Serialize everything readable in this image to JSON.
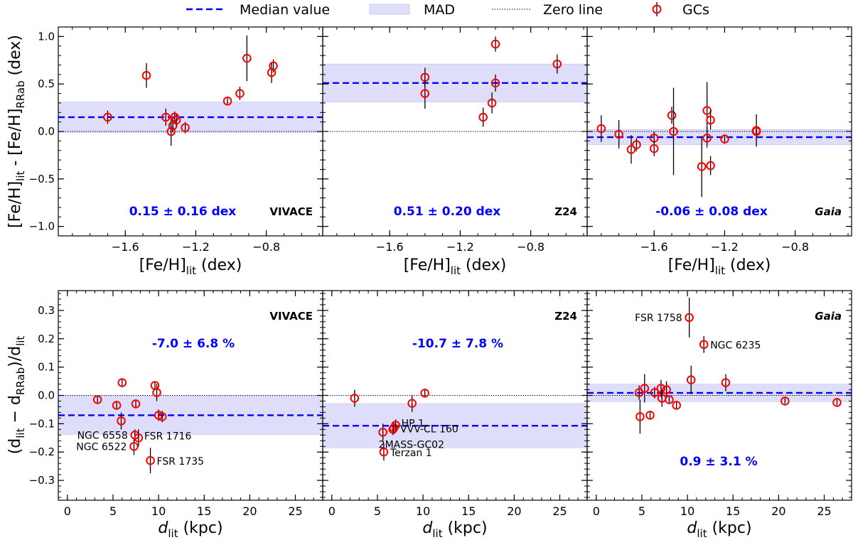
{
  "legend": {
    "items": [
      {
        "label": "Median value",
        "kind": "dashed-line",
        "color": "#0000ff"
      },
      {
        "label": "MAD",
        "kind": "band",
        "color": "#e0e0fb"
      },
      {
        "label": "Zero line",
        "kind": "dotted-line",
        "color": "#000000"
      },
      {
        "label": "GCs",
        "kind": "circle-marker",
        "color": "#ff0000"
      }
    ],
    "placement": "top-center"
  },
  "colors": {
    "median": "#0000ff",
    "mad": "#dedefa",
    "marker": "#ff0000",
    "errorbar": "#000000",
    "stat_text": "#0000ff"
  },
  "rows": {
    "top": {
      "ylabel_main": "[Fe/H]",
      "ylabel_sub1": "lit",
      "ylabel_mid": " - [Fe/H]",
      "ylabel_sub2": "RRab",
      "ylabel_unit": " (dex)",
      "xlabel_main": "[Fe/H]",
      "xlabel_sub": "lit",
      "xlabel_unit": " (dex)"
    },
    "bottom": {
      "ylabel_open": "(d",
      "ylabel_sub1": "lit",
      "ylabel_minus": " − d",
      "ylabel_sub2": "RRab",
      "ylabel_mid": ")/d",
      "ylabel_sub3": "lit",
      "xlabel_main": "d",
      "xlabel_sub": "lit",
      "xlabel_unit": " (kpc)"
    }
  },
  "chart_data": [
    {
      "type": "scatter",
      "row": "top",
      "col": 0,
      "tag": "VIVACE",
      "tag_italic": false,
      "stat_text": "0.15 ± 0.16 dex",
      "xlim": [
        -1.98,
        -0.48
      ],
      "ylim": [
        -1.1,
        1.1
      ],
      "xticks": [
        -1.6,
        -1.2,
        -0.8
      ],
      "xtick_labels": [
        "−1.6",
        "−1.2",
        "−0.8"
      ],
      "yticks": [
        -1.0,
        -0.5,
        0.0,
        0.5,
        1.0
      ],
      "ytick_labels": [
        "−1.0",
        "−0.5",
        "0.0",
        "0.5",
        "1.0"
      ],
      "median": 0.15,
      "mad": 0.16,
      "points": [
        {
          "x": -1.7,
          "y": 0.15,
          "err": 0.07
        },
        {
          "x": -1.48,
          "y": 0.59,
          "err": 0.13
        },
        {
          "x": -1.37,
          "y": 0.15,
          "err": 0.09
        },
        {
          "x": -1.34,
          "y": 0.0,
          "err": 0.15
        },
        {
          "x": -1.33,
          "y": 0.06,
          "err": 0.07
        },
        {
          "x": -1.32,
          "y": 0.15,
          "err": 0.06
        },
        {
          "x": -1.31,
          "y": 0.12,
          "err": 0.06
        },
        {
          "x": -1.26,
          "y": 0.04,
          "err": 0.06
        },
        {
          "x": -1.02,
          "y": 0.32,
          "err": 0.03
        },
        {
          "x": -0.95,
          "y": 0.4,
          "err": 0.07
        },
        {
          "x": -0.91,
          "y": 0.77,
          "err": 0.24
        },
        {
          "x": -0.77,
          "y": 0.62,
          "err": 0.11
        },
        {
          "x": -0.76,
          "y": 0.69,
          "err": 0.07
        }
      ],
      "labels": []
    },
    {
      "type": "scatter",
      "row": "top",
      "col": 1,
      "tag": "Z24",
      "tag_italic": false,
      "stat_text": "0.51 ± 0.20 dex",
      "xlim": [
        -1.98,
        -0.48
      ],
      "ylim": [
        -1.1,
        1.1
      ],
      "xticks": [
        -1.6,
        -1.2,
        -0.8
      ],
      "xtick_labels": [
        "−1.6",
        "−1.2",
        "−0.8"
      ],
      "yticks": [
        -1.0,
        -0.5,
        0.0,
        0.5,
        1.0
      ],
      "ytick_labels": [],
      "median": 0.51,
      "mad": 0.2,
      "points": [
        {
          "x": -1.4,
          "y": 0.57,
          "err": 0.1
        },
        {
          "x": -1.4,
          "y": 0.4,
          "err": 0.16
        },
        {
          "x": -1.07,
          "y": 0.15,
          "err": 0.1
        },
        {
          "x": -1.02,
          "y": 0.3,
          "err": 0.11
        },
        {
          "x": -1.0,
          "y": 0.92,
          "err": 0.08
        },
        {
          "x": -1.0,
          "y": 0.51,
          "err": 0.09
        },
        {
          "x": -0.65,
          "y": 0.71,
          "err": 0.1
        }
      ],
      "labels": []
    },
    {
      "type": "scatter",
      "row": "top",
      "col": 2,
      "tag": "Gaia",
      "tag_italic": true,
      "stat_text": "-0.06 ± 0.08 dex",
      "xlim": [
        -1.98,
        -0.48
      ],
      "ylim": [
        -1.1,
        1.1
      ],
      "xticks": [
        -1.6,
        -1.2,
        -0.8
      ],
      "xtick_labels": [
        "−1.6",
        "−1.2",
        "−0.8"
      ],
      "yticks": [
        -1.0,
        -0.5,
        0.0,
        0.5,
        1.0
      ],
      "ytick_labels": [],
      "median": -0.06,
      "mad": 0.08,
      "points": [
        {
          "x": -1.9,
          "y": 0.03,
          "err": 0.14
        },
        {
          "x": -1.8,
          "y": -0.03,
          "err": 0.15
        },
        {
          "x": -1.73,
          "y": -0.19,
          "err": 0.15
        },
        {
          "x": -1.7,
          "y": -0.14,
          "err": 0.07
        },
        {
          "x": -1.6,
          "y": -0.07,
          "err": 0.07
        },
        {
          "x": -1.6,
          "y": -0.18,
          "err": 0.08
        },
        {
          "x": -1.5,
          "y": 0.17,
          "err": 0.09
        },
        {
          "x": -1.49,
          "y": 0.0,
          "err": 0.46
        },
        {
          "x": -1.33,
          "y": -0.37,
          "err": 0.32
        },
        {
          "x": -1.3,
          "y": 0.22,
          "err": 0.3
        },
        {
          "x": -1.3,
          "y": -0.07,
          "err": 0.1
        },
        {
          "x": -1.28,
          "y": 0.12,
          "err": 0.1
        },
        {
          "x": -1.28,
          "y": -0.36,
          "err": 0.1
        },
        {
          "x": -1.2,
          "y": -0.08,
          "err": 0.05
        },
        {
          "x": -1.02,
          "y": 0.01,
          "err": 0.17
        },
        {
          "x": -1.02,
          "y": 0.0,
          "err": 0.04
        }
      ],
      "labels": []
    },
    {
      "type": "scatter",
      "row": "bottom",
      "col": 0,
      "tag": "VIVACE",
      "tag_italic": false,
      "stat_text": "-7.0 ± 6.8 %",
      "xlim": [
        -1,
        28
      ],
      "ylim": [
        -0.37,
        0.37
      ],
      "xticks": [
        0,
        5,
        10,
        15,
        20,
        25
      ],
      "xtick_labels": [
        "0",
        "5",
        "10",
        "15",
        "20",
        "25"
      ],
      "yticks": [
        -0.3,
        -0.2,
        -0.1,
        0.0,
        0.1,
        0.2,
        0.3
      ],
      "ytick_labels": [
        "−0.3",
        "−0.2",
        "−0.1",
        "0.0",
        "0.1",
        "0.2",
        "0.3"
      ],
      "median": -0.07,
      "mad": 0.068,
      "points": [
        {
          "x": 3.3,
          "y": -0.015,
          "err": 0.015
        },
        {
          "x": 5.4,
          "y": -0.035,
          "err": 0.012
        },
        {
          "x": 5.9,
          "y": -0.09,
          "err": 0.03
        },
        {
          "x": 6.0,
          "y": 0.045,
          "err": 0.015
        },
        {
          "x": 7.3,
          "y": -0.18,
          "err": 0.03
        },
        {
          "x": 7.4,
          "y": -0.14,
          "err": 0.02
        },
        {
          "x": 7.5,
          "y": -0.03,
          "err": 0.015
        },
        {
          "x": 7.8,
          "y": -0.15,
          "err": 0.03
        },
        {
          "x": 9.1,
          "y": -0.23,
          "err": 0.045
        },
        {
          "x": 9.6,
          "y": 0.035,
          "err": 0.015
        },
        {
          "x": 9.8,
          "y": 0.01,
          "err": 0.03
        },
        {
          "x": 10.0,
          "y": -0.07,
          "err": 0.02
        },
        {
          "x": 10.4,
          "y": -0.075,
          "err": 0.02
        }
      ],
      "labels": [
        {
          "text": "FSR 1716",
          "x": 7.8,
          "y": -0.15,
          "side": "right-up"
        },
        {
          "text": "NGC 6558",
          "x": 7.4,
          "y": -0.14,
          "side": "left"
        },
        {
          "text": "NGC 6522",
          "x": 7.3,
          "y": -0.18,
          "side": "left"
        },
        {
          "text": "FSR 1735",
          "x": 9.1,
          "y": -0.23,
          "side": "right"
        }
      ]
    },
    {
      "type": "scatter",
      "row": "bottom",
      "col": 1,
      "tag": "Z24",
      "tag_italic": false,
      "stat_text": "-10.7 ± 7.8 %",
      "xlim": [
        -1,
        28
      ],
      "ylim": [
        -0.37,
        0.37
      ],
      "xticks": [
        0,
        5,
        10,
        15,
        20,
        25
      ],
      "xtick_labels": [
        "0",
        "5",
        "10",
        "15",
        "20",
        "25"
      ],
      "yticks": [
        -0.3,
        -0.2,
        -0.1,
        0.0,
        0.1,
        0.2,
        0.3
      ],
      "ytick_labels": [],
      "median": -0.107,
      "mad": 0.078,
      "points": [
        {
          "x": 2.5,
          "y": -0.01,
          "err": 0.03
        },
        {
          "x": 5.6,
          "y": -0.13,
          "err": 0.03
        },
        {
          "x": 5.7,
          "y": -0.2,
          "err": 0.03
        },
        {
          "x": 6.7,
          "y": -0.12,
          "err": 0.02
        },
        {
          "x": 6.8,
          "y": -0.115,
          "err": 0.02
        },
        {
          "x": 7.0,
          "y": -0.105,
          "err": 0.02
        },
        {
          "x": 8.8,
          "y": -0.028,
          "err": 0.03
        },
        {
          "x": 10.2,
          "y": 0.008,
          "err": 0.015
        }
      ],
      "labels": [
        {
          "text": "HP 1",
          "x": 7.0,
          "y": -0.105,
          "side": "right-up"
        },
        {
          "text": "VVV-CL 160",
          "x": 6.8,
          "y": -0.115,
          "side": "right"
        },
        {
          "text": "2MASS-GC02",
          "x": 5.6,
          "y": -0.13,
          "side": "right-down"
        },
        {
          "text": "Terzan 1",
          "x": 5.7,
          "y": -0.2,
          "side": "right"
        }
      ]
    },
    {
      "type": "scatter",
      "row": "bottom",
      "col": 2,
      "tag": "Gaia",
      "tag_italic": true,
      "stat_text": "0.9 ± 3.1 %",
      "xlim": [
        -1,
        28
      ],
      "ylim": [
        -0.37,
        0.37
      ],
      "xticks": [
        0,
        5,
        10,
        15,
        20,
        25
      ],
      "xtick_labels": [
        "0",
        "5",
        "10",
        "15",
        "20",
        "25"
      ],
      "yticks": [
        -0.3,
        -0.2,
        -0.1,
        0.0,
        0.1,
        0.2,
        0.3
      ],
      "ytick_labels": [],
      "median": 0.009,
      "mad": 0.031,
      "points": [
        {
          "x": 4.7,
          "y": 0.01,
          "err": 0.025
        },
        {
          "x": 4.8,
          "y": -0.075,
          "err": 0.06
        },
        {
          "x": 5.3,
          "y": 0.025,
          "err": 0.05
        },
        {
          "x": 5.9,
          "y": -0.07,
          "err": 0.015
        },
        {
          "x": 6.4,
          "y": 0.01,
          "err": 0.02
        },
        {
          "x": 7.1,
          "y": 0.025,
          "err": 0.03
        },
        {
          "x": 7.2,
          "y": -0.01,
          "err": 0.03
        },
        {
          "x": 7.7,
          "y": 0.02,
          "err": 0.03
        },
        {
          "x": 8.0,
          "y": -0.015,
          "err": 0.015
        },
        {
          "x": 8.8,
          "y": -0.035,
          "err": 0.015
        },
        {
          "x": 10.2,
          "y": 0.275,
          "err": 0.07
        },
        {
          "x": 10.4,
          "y": 0.055,
          "err": 0.05
        },
        {
          "x": 11.8,
          "y": 0.18,
          "err": 0.03
        },
        {
          "x": 14.2,
          "y": 0.045,
          "err": 0.03
        },
        {
          "x": 20.7,
          "y": -0.02,
          "err": 0.01
        },
        {
          "x": 26.4,
          "y": -0.025,
          "err": 0.01
        }
      ],
      "labels": [
        {
          "text": "FSR 1758",
          "x": 10.2,
          "y": 0.275,
          "side": "left"
        },
        {
          "text": "NGC 6235",
          "x": 11.8,
          "y": 0.18,
          "side": "right"
        }
      ]
    }
  ]
}
